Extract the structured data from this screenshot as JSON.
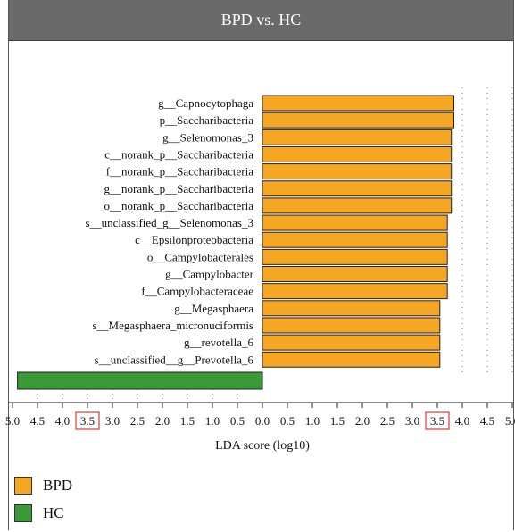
{
  "chart_data": {
    "type": "bar",
    "title": "BPD vs. HC",
    "xlabel": "LDA score (log10)",
    "xlim": [
      -5.5,
      5.5
    ],
    "tick_labels_left": [
      "5.0",
      "4.5",
      "4.0",
      "3.5",
      "3.0",
      "2.5",
      "2.0",
      "1.5",
      "1.0",
      "0.5"
    ],
    "tick_labels_right": [
      "0.0",
      "0.5",
      "1.0",
      "1.5",
      "2.0",
      "2.5",
      "3.0",
      "3.5",
      "4.0",
      "4.5",
      "5.0"
    ],
    "highlighted_ticks": [
      "3.5"
    ],
    "series": [
      {
        "name": "BPD",
        "color": "#f5a623",
        "categories": [
          "g__Capnocytophaga",
          "p__Saccharibacteria",
          "g__Selenomonas_3",
          "c__norank_p__Saccharibacteria",
          "f__norank_p__Saccharibacteria",
          "g__norank_p__Saccharibacteria",
          "o__norank_p__Saccharibacteria",
          "s__unclassified_g__Selenomonas_3",
          "c__Epsilonproteobacteria",
          "o__Campylobacterales",
          "g__Campylobacter",
          "f__Campylobacteraceae",
          "g__Megasphaera",
          "s__Megasphaera_micronuciformis",
          "g__revotella_6",
          "s__unclassified__g__Prevotella_6"
        ],
        "values": [
          3.83,
          3.83,
          3.78,
          3.78,
          3.78,
          3.78,
          3.78,
          3.7,
          3.7,
          3.7,
          3.7,
          3.7,
          3.55,
          3.55,
          3.55,
          3.55
        ]
      },
      {
        "name": "HC",
        "color": "#3a9a38",
        "categories": [
          ""
        ],
        "values": [
          -4.9
        ]
      }
    ],
    "legend_position": "bottom-left"
  }
}
